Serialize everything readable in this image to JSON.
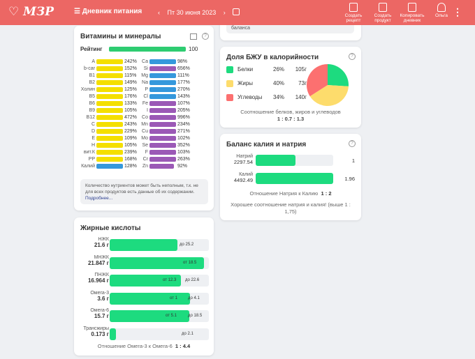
{
  "header": {
    "logo": "МЗР",
    "title": "Дневник питания",
    "date": "Пт 30 июня 2023",
    "prev": "‹",
    "next": "›",
    "actions": [
      {
        "label": "Создать рецепт"
      },
      {
        "label": "Создать продукт"
      },
      {
        "label": "Копировать дневник"
      },
      {
        "label": "Ольга"
      }
    ],
    "more": "⋮"
  },
  "colors": {
    "header": "#ec6764",
    "green": "#1ddb7f",
    "yellow": "#f4df00",
    "blue": "#3598dc",
    "purple": "#9b59b6",
    "fat": "#fddc6c",
    "carb": "#fc7070"
  },
  "vitamins": {
    "title": "Витамины и минералы",
    "rating_label": "Рейтинг",
    "rating": "100",
    "left": [
      {
        "n": "A",
        "v": "242%",
        "c": "y"
      },
      {
        "n": "b-car",
        "v": "152%",
        "c": "y"
      },
      {
        "n": "B1",
        "v": "115%",
        "c": "y"
      },
      {
        "n": "B2",
        "v": "149%",
        "c": "y"
      },
      {
        "n": "Холин",
        "v": "125%",
        "c": "y"
      },
      {
        "n": "B5",
        "v": "176%",
        "c": "y"
      },
      {
        "n": "B6",
        "v": "133%",
        "c": "y"
      },
      {
        "n": "B9",
        "v": "105%",
        "c": "y"
      },
      {
        "n": "B12",
        "v": "472%",
        "c": "y"
      },
      {
        "n": "C",
        "v": "243%",
        "c": "y"
      },
      {
        "n": "D",
        "v": "229%",
        "c": "y"
      },
      {
        "n": "E",
        "v": "109%",
        "c": "y"
      },
      {
        "n": "H",
        "v": "105%",
        "c": "y"
      },
      {
        "n": "вит.К",
        "v": "239%",
        "c": "y"
      },
      {
        "n": "PP",
        "v": "168%",
        "c": "y"
      },
      {
        "n": "Калий",
        "v": "128%",
        "c": "b"
      }
    ],
    "right": [
      {
        "n": "Ca",
        "v": "98%",
        "c": "b"
      },
      {
        "n": "Si",
        "v": "656%",
        "c": "p"
      },
      {
        "n": "Mg",
        "v": "111%",
        "c": "b"
      },
      {
        "n": "Na",
        "v": "177%",
        "c": "b"
      },
      {
        "n": "P",
        "v": "270%",
        "c": "b"
      },
      {
        "n": "Cl",
        "v": "143%",
        "c": "b"
      },
      {
        "n": "Fe",
        "v": "107%",
        "c": "p"
      },
      {
        "n": "I",
        "v": "205%",
        "c": "p"
      },
      {
        "n": "Co",
        "v": "996%",
        "c": "p"
      },
      {
        "n": "Mn",
        "v": "234%",
        "c": "p"
      },
      {
        "n": "Cu",
        "v": "271%",
        "c": "p"
      },
      {
        "n": "Mo",
        "v": "102%",
        "c": "p"
      },
      {
        "n": "Se",
        "v": "352%",
        "c": "p"
      },
      {
        "n": "F",
        "v": "103%",
        "c": "p"
      },
      {
        "n": "Cr",
        "v": "263%",
        "c": "p"
      },
      {
        "n": "Zn",
        "v": "92%",
        "c": "p"
      }
    ],
    "note": "Количество нутриентов может быть неполным, т.к. не для всех продуктов есть данные об их содержании.",
    "more_link": "Подробнее..."
  },
  "top_card": {
    "text": "баланса"
  },
  "bju": {
    "title": "Доля БЖУ в калорийности",
    "items": [
      {
        "name": "Белки",
        "pct": 26,
        "pct_label": "26%",
        "g": "105г"
      },
      {
        "name": "Жиры",
        "pct": 40,
        "pct_label": "40%",
        "g": "73г"
      },
      {
        "name": "Углеводы",
        "pct": 34,
        "pct_label": "34%",
        "g": "140г"
      }
    ],
    "ratio_label": "Соотношение белков, жиров и углеводов",
    "ratio": "1 : 0.7 : 1.3"
  },
  "balance": {
    "title": "Баланс калия и натрия",
    "rows": [
      {
        "name": "Натрий",
        "value": "2297.54",
        "fill": 0.51,
        "ratio": "1"
      },
      {
        "name": "Калий",
        "value": "4492.49",
        "fill": 1,
        "ratio": "1.96"
      }
    ],
    "ratio_label": "Отношение Натрия к Калию",
    "ratio": "1 : 2",
    "message": "Хорошее соотношение натрия и калия! (выше 1 : 1,75)"
  },
  "fatty": {
    "title": "Жирные кислоты",
    "rows": [
      {
        "name": "НЖК",
        "value": "21.6 г",
        "fill": 0.68,
        "marks": [
          "до 25.2"
        ]
      },
      {
        "name": "МНЖК",
        "value": "21.847 г",
        "fill": 0.95,
        "marks": [
          "от 18.5"
        ]
      },
      {
        "name": "ПНЖК",
        "value": "16.964 г",
        "fill": 0.72,
        "marks": [
          "от 12.3",
          "до 22.6"
        ]
      },
      {
        "name": "Омега-3",
        "value": "3.6 г",
        "fill": 0.81,
        "marks": [
          "от 1",
          "до 4.1"
        ]
      },
      {
        "name": "Омега-6",
        "value": "15.7 г",
        "fill": 0.8,
        "marks": [
          "от 5.1",
          "до 18.5"
        ]
      },
      {
        "name": "Трансжиры",
        "value": "0.173 г",
        "fill": 0.06,
        "marks": [
          "до 2.1"
        ]
      }
    ],
    "ratio_label": "Отношение Омега-3 к Омега-6",
    "ratio": "1 : 4.4"
  }
}
